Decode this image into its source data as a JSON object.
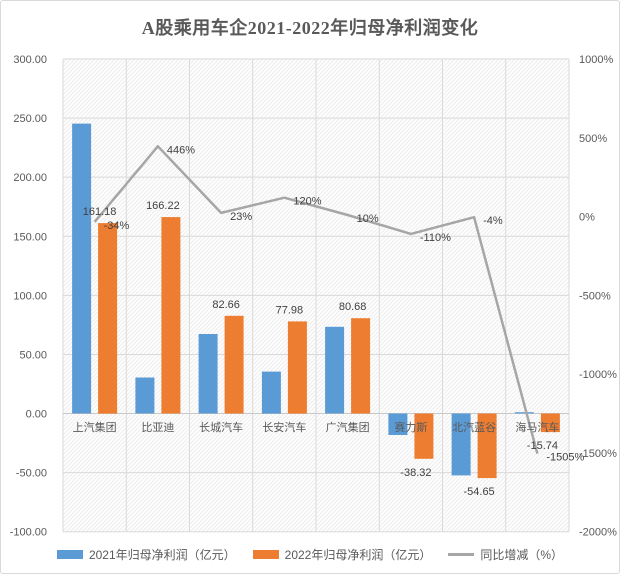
{
  "chart_data": {
    "type": "combo-bar-line",
    "title": "A股乘用车企2021-2022年归母净利润变化",
    "categories": [
      "上汽集团",
      "比亚迪",
      "长城汽车",
      "长安汽车",
      "广汽集团",
      "赛力斯",
      "北汽蓝谷",
      "海马汽车"
    ],
    "series": [
      {
        "name": "2021年归母净利润（亿元）",
        "type": "bar",
        "axis": "left",
        "color": "#5B9BD5",
        "values": [
          245.3,
          30.5,
          67.3,
          35.5,
          73.4,
          -18.2,
          -52.4,
          1.1
        ],
        "labels": [
          "",
          "",
          "",
          "",
          "",
          "",
          "",
          ""
        ]
      },
      {
        "name": "2022年归母净利润（亿元）",
        "type": "bar",
        "axis": "left",
        "color": "#ED7D31",
        "values": [
          161.18,
          166.22,
          82.66,
          77.98,
          80.68,
          -38.32,
          -54.65,
          -15.74
        ],
        "labels": [
          "161.18",
          "166.22",
          "82.66",
          "77.98",
          "80.68",
          "-38.32",
          "-54.65",
          "-15.74"
        ]
      },
      {
        "name": "同比增减（%）",
        "type": "line",
        "axis": "right",
        "color": "#A6A6A6",
        "values": [
          -34,
          446,
          23,
          120,
          10,
          -110,
          -4,
          -1505
        ],
        "labels": [
          "-34%",
          "446%",
          "23%",
          "120%",
          "10%",
          "-110%",
          "-4%",
          "-1505%"
        ]
      }
    ],
    "left_axis": {
      "min": -100,
      "max": 300,
      "step": 50,
      "ticks": [
        "300.00",
        "250.00",
        "200.00",
        "150.00",
        "100.00",
        "50.00",
        "0.00",
        "-50.00",
        "-100.00"
      ]
    },
    "right_axis": {
      "min": -2000,
      "max": 1000,
      "step": 500,
      "ticks": [
        "1000%",
        "500%",
        "0%",
        "-500%",
        "-1000%",
        "-1500%",
        "-2000%"
      ]
    },
    "grid": true,
    "plot_background": "diagonal-hatch",
    "legend_position": "bottom",
    "colors": {
      "grid": "#d9d9d9",
      "hatch": "#ececec",
      "axis_text": "#595959",
      "data_label_text": "#404040",
      "zero_line": "#c9c9c9"
    }
  }
}
